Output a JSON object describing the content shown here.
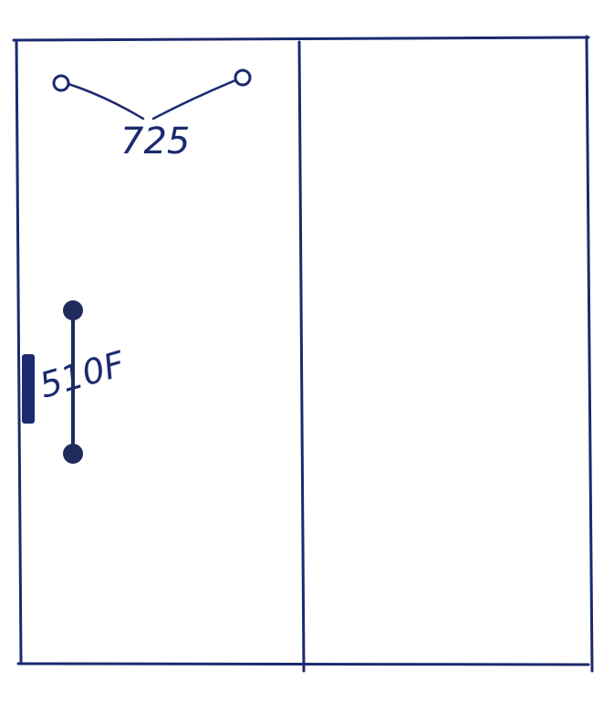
{
  "diagram": {
    "ink_color": "#1c2a6e",
    "top_label": "725",
    "side_label": "510F",
    "handle_color": "#1f2b5c"
  }
}
